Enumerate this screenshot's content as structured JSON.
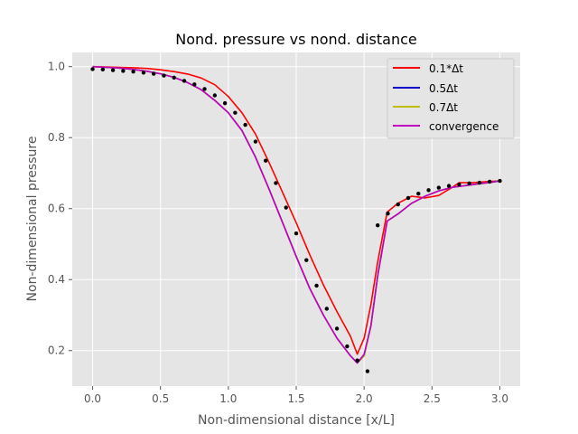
{
  "chart_data": {
    "type": "line",
    "title": "Nond. pressure vs nond. distance",
    "xlabel": "Non-dimensional distance [x/L]",
    "ylabel": "Non-dimensional pressure",
    "xlim": [
      -0.15,
      3.15
    ],
    "ylim": [
      0.1,
      1.04
    ],
    "xticks": [
      0.0,
      0.5,
      1.0,
      1.5,
      2.0,
      2.5,
      3.0
    ],
    "xtick_labels": [
      "0.0",
      "0.5",
      "1.0",
      "1.5",
      "2.0",
      "2.5",
      "3.0"
    ],
    "yticks": [
      0.2,
      0.4,
      0.6,
      0.8,
      1.0
    ],
    "ytick_labels": [
      "0.2",
      "0.4",
      "0.6",
      "0.8",
      "1.0"
    ],
    "grid": true,
    "legend_position": "top-right",
    "series": [
      {
        "name": "0.1*Δt",
        "color": "#ff0000",
        "x": [
          0.0,
          0.1,
          0.2,
          0.3,
          0.4,
          0.5,
          0.6,
          0.7,
          0.8,
          0.9,
          1.0,
          1.1,
          1.2,
          1.3,
          1.4,
          1.5,
          1.6,
          1.7,
          1.8,
          1.9,
          1.95,
          2.0,
          2.05,
          2.1,
          2.17,
          2.25,
          2.35,
          2.45,
          2.55,
          2.65,
          2.7,
          2.8,
          2.9,
          3.0
        ],
        "y": [
          1.0,
          0.999,
          0.998,
          0.997,
          0.995,
          0.991,
          0.986,
          0.979,
          0.968,
          0.949,
          0.916,
          0.87,
          0.81,
          0.73,
          0.645,
          0.56,
          0.47,
          0.385,
          0.31,
          0.24,
          0.19,
          0.235,
          0.33,
          0.45,
          0.59,
          0.615,
          0.635,
          0.63,
          0.637,
          0.66,
          0.673,
          0.673,
          0.676,
          0.678
        ]
      },
      {
        "name": "0.5Δt",
        "color": "#0000cc",
        "x": [
          0.0,
          0.1,
          0.2,
          0.3,
          0.4,
          0.5,
          0.6,
          0.7,
          0.8,
          0.9,
          1.0,
          1.1,
          1.2,
          1.3,
          1.4,
          1.5,
          1.6,
          1.7,
          1.8,
          1.9,
          1.95,
          2.0,
          2.05,
          2.1,
          2.17,
          2.25,
          2.35,
          2.45,
          2.55,
          2.65,
          2.75,
          2.85,
          2.95,
          3.0
        ],
        "y": [
          1.0,
          0.998,
          0.996,
          0.992,
          0.987,
          0.98,
          0.97,
          0.955,
          0.935,
          0.905,
          0.87,
          0.82,
          0.745,
          0.655,
          0.56,
          0.465,
          0.375,
          0.3,
          0.235,
          0.185,
          0.165,
          0.185,
          0.27,
          0.41,
          0.565,
          0.585,
          0.615,
          0.635,
          0.65,
          0.66,
          0.665,
          0.67,
          0.675,
          0.678
        ]
      },
      {
        "name": "0.7Δt",
        "color": "#bfbf00",
        "x": [
          0.0,
          0.1,
          0.2,
          0.3,
          0.4,
          0.5,
          0.6,
          0.7,
          0.8,
          0.9,
          1.0,
          1.1,
          1.2,
          1.3,
          1.4,
          1.5,
          1.6,
          1.7,
          1.8,
          1.9,
          1.95,
          2.0,
          2.05,
          2.1,
          2.17,
          2.25,
          2.35,
          2.45,
          2.55,
          2.65,
          2.75,
          2.85,
          2.95,
          3.0
        ],
        "y": [
          1.0,
          0.998,
          0.996,
          0.992,
          0.987,
          0.98,
          0.97,
          0.955,
          0.935,
          0.905,
          0.87,
          0.82,
          0.745,
          0.655,
          0.56,
          0.465,
          0.375,
          0.3,
          0.235,
          0.185,
          0.165,
          0.185,
          0.27,
          0.41,
          0.565,
          0.585,
          0.615,
          0.635,
          0.65,
          0.66,
          0.665,
          0.67,
          0.675,
          0.678
        ]
      },
      {
        "name": "convergence",
        "color": "#bf00bf",
        "x": [
          0.0,
          0.1,
          0.2,
          0.3,
          0.4,
          0.5,
          0.6,
          0.7,
          0.8,
          0.9,
          1.0,
          1.1,
          1.2,
          1.3,
          1.4,
          1.5,
          1.6,
          1.7,
          1.8,
          1.9,
          1.95,
          2.0,
          2.05,
          2.1,
          2.17,
          2.25,
          2.35,
          2.45,
          2.55,
          2.65,
          2.75,
          2.85,
          2.95,
          3.0
        ],
        "y": [
          1.0,
          0.998,
          0.996,
          0.992,
          0.987,
          0.98,
          0.97,
          0.955,
          0.935,
          0.905,
          0.87,
          0.82,
          0.745,
          0.655,
          0.56,
          0.465,
          0.375,
          0.3,
          0.235,
          0.185,
          0.165,
          0.19,
          0.27,
          0.41,
          0.565,
          0.585,
          0.615,
          0.635,
          0.65,
          0.66,
          0.665,
          0.67,
          0.675,
          0.678
        ]
      }
    ],
    "scatter": {
      "color": "#000000",
      "x": [
        0.0,
        0.075,
        0.15,
        0.225,
        0.3,
        0.375,
        0.45,
        0.525,
        0.6,
        0.675,
        0.75,
        0.825,
        0.9,
        0.975,
        1.05,
        1.125,
        1.2,
        1.275,
        1.35,
        1.425,
        1.5,
        1.575,
        1.65,
        1.725,
        1.8,
        1.875,
        1.95,
        2.025,
        2.1,
        2.175,
        2.25,
        2.325,
        2.4,
        2.475,
        2.55,
        2.625,
        2.7,
        2.775,
        2.85,
        2.925,
        3.0
      ],
      "y": [
        0.993,
        0.992,
        0.99,
        0.988,
        0.986,
        0.983,
        0.98,
        0.975,
        0.969,
        0.96,
        0.95,
        0.937,
        0.919,
        0.897,
        0.87,
        0.836,
        0.789,
        0.735,
        0.672,
        0.603,
        0.53,
        0.455,
        0.383,
        0.318,
        0.262,
        0.212,
        0.172,
        0.142,
        0.553,
        0.586,
        0.612,
        0.63,
        0.642,
        0.652,
        0.659,
        0.664,
        0.668,
        0.671,
        0.673,
        0.676,
        0.678
      ]
    }
  }
}
